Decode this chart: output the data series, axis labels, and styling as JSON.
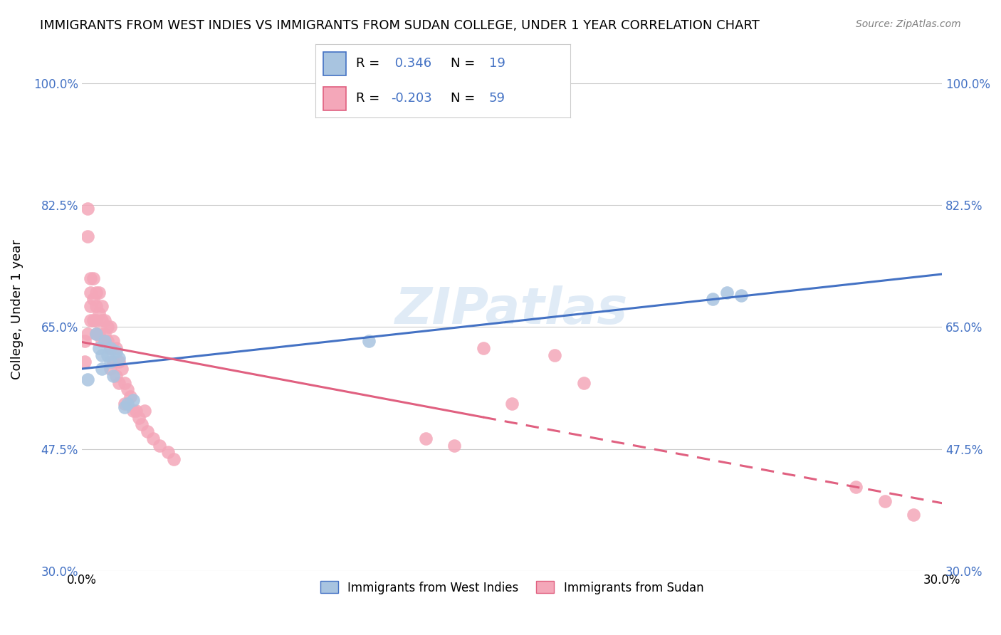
{
  "title": "IMMIGRANTS FROM WEST INDIES VS IMMIGRANTS FROM SUDAN COLLEGE, UNDER 1 YEAR CORRELATION CHART",
  "source": "Source: ZipAtlas.com",
  "ylabel": "College, Under 1 year",
  "xlabel": "",
  "xlim": [
    0.0,
    0.3
  ],
  "ylim": [
    0.3,
    1.05
  ],
  "yticks": [
    0.3,
    0.475,
    0.65,
    0.825,
    1.0
  ],
  "ytick_labels": [
    "30.0%",
    "47.5%",
    "65.0%",
    "82.5%",
    "100.0%"
  ],
  "xticks": [
    0.0,
    0.3
  ],
  "xtick_labels": [
    "0.0%",
    "30.0%"
  ],
  "west_indies_R": 0.346,
  "west_indies_N": 19,
  "sudan_R": -0.203,
  "sudan_N": 59,
  "west_indies_color": "#a8c4e0",
  "sudan_color": "#f4a7b9",
  "west_indies_line_color": "#4472c4",
  "sudan_line_color": "#e06080",
  "watermark": "ZIPatlas",
  "background_color": "#ffffff",
  "west_indies_x": [
    0.002,
    0.005,
    0.006,
    0.007,
    0.007,
    0.008,
    0.009,
    0.01,
    0.01,
    0.011,
    0.012,
    0.013,
    0.015,
    0.016,
    0.018,
    0.1,
    0.22,
    0.225,
    0.23
  ],
  "west_indies_y": [
    0.575,
    0.64,
    0.62,
    0.61,
    0.59,
    0.63,
    0.61,
    0.6,
    0.62,
    0.58,
    0.615,
    0.605,
    0.535,
    0.54,
    0.545,
    0.63,
    0.69,
    0.7,
    0.695
  ],
  "sudan_x": [
    0.001,
    0.001,
    0.002,
    0.002,
    0.002,
    0.003,
    0.003,
    0.003,
    0.003,
    0.004,
    0.004,
    0.004,
    0.005,
    0.005,
    0.005,
    0.005,
    0.006,
    0.006,
    0.006,
    0.007,
    0.007,
    0.007,
    0.008,
    0.008,
    0.009,
    0.009,
    0.01,
    0.01,
    0.01,
    0.011,
    0.011,
    0.012,
    0.012,
    0.013,
    0.013,
    0.014,
    0.015,
    0.015,
    0.016,
    0.017,
    0.018,
    0.019,
    0.02,
    0.021,
    0.022,
    0.023,
    0.025,
    0.027,
    0.03,
    0.032,
    0.12,
    0.13,
    0.14,
    0.15,
    0.165,
    0.175,
    0.27,
    0.28,
    0.29
  ],
  "sudan_y": [
    0.63,
    0.6,
    0.82,
    0.78,
    0.64,
    0.72,
    0.7,
    0.68,
    0.66,
    0.72,
    0.69,
    0.66,
    0.7,
    0.68,
    0.66,
    0.64,
    0.7,
    0.67,
    0.64,
    0.68,
    0.66,
    0.63,
    0.66,
    0.64,
    0.65,
    0.63,
    0.65,
    0.62,
    0.59,
    0.63,
    0.6,
    0.62,
    0.58,
    0.6,
    0.57,
    0.59,
    0.57,
    0.54,
    0.56,
    0.55,
    0.53,
    0.53,
    0.52,
    0.51,
    0.53,
    0.5,
    0.49,
    0.48,
    0.47,
    0.46,
    0.49,
    0.48,
    0.62,
    0.54,
    0.61,
    0.57,
    0.42,
    0.4,
    0.38
  ]
}
